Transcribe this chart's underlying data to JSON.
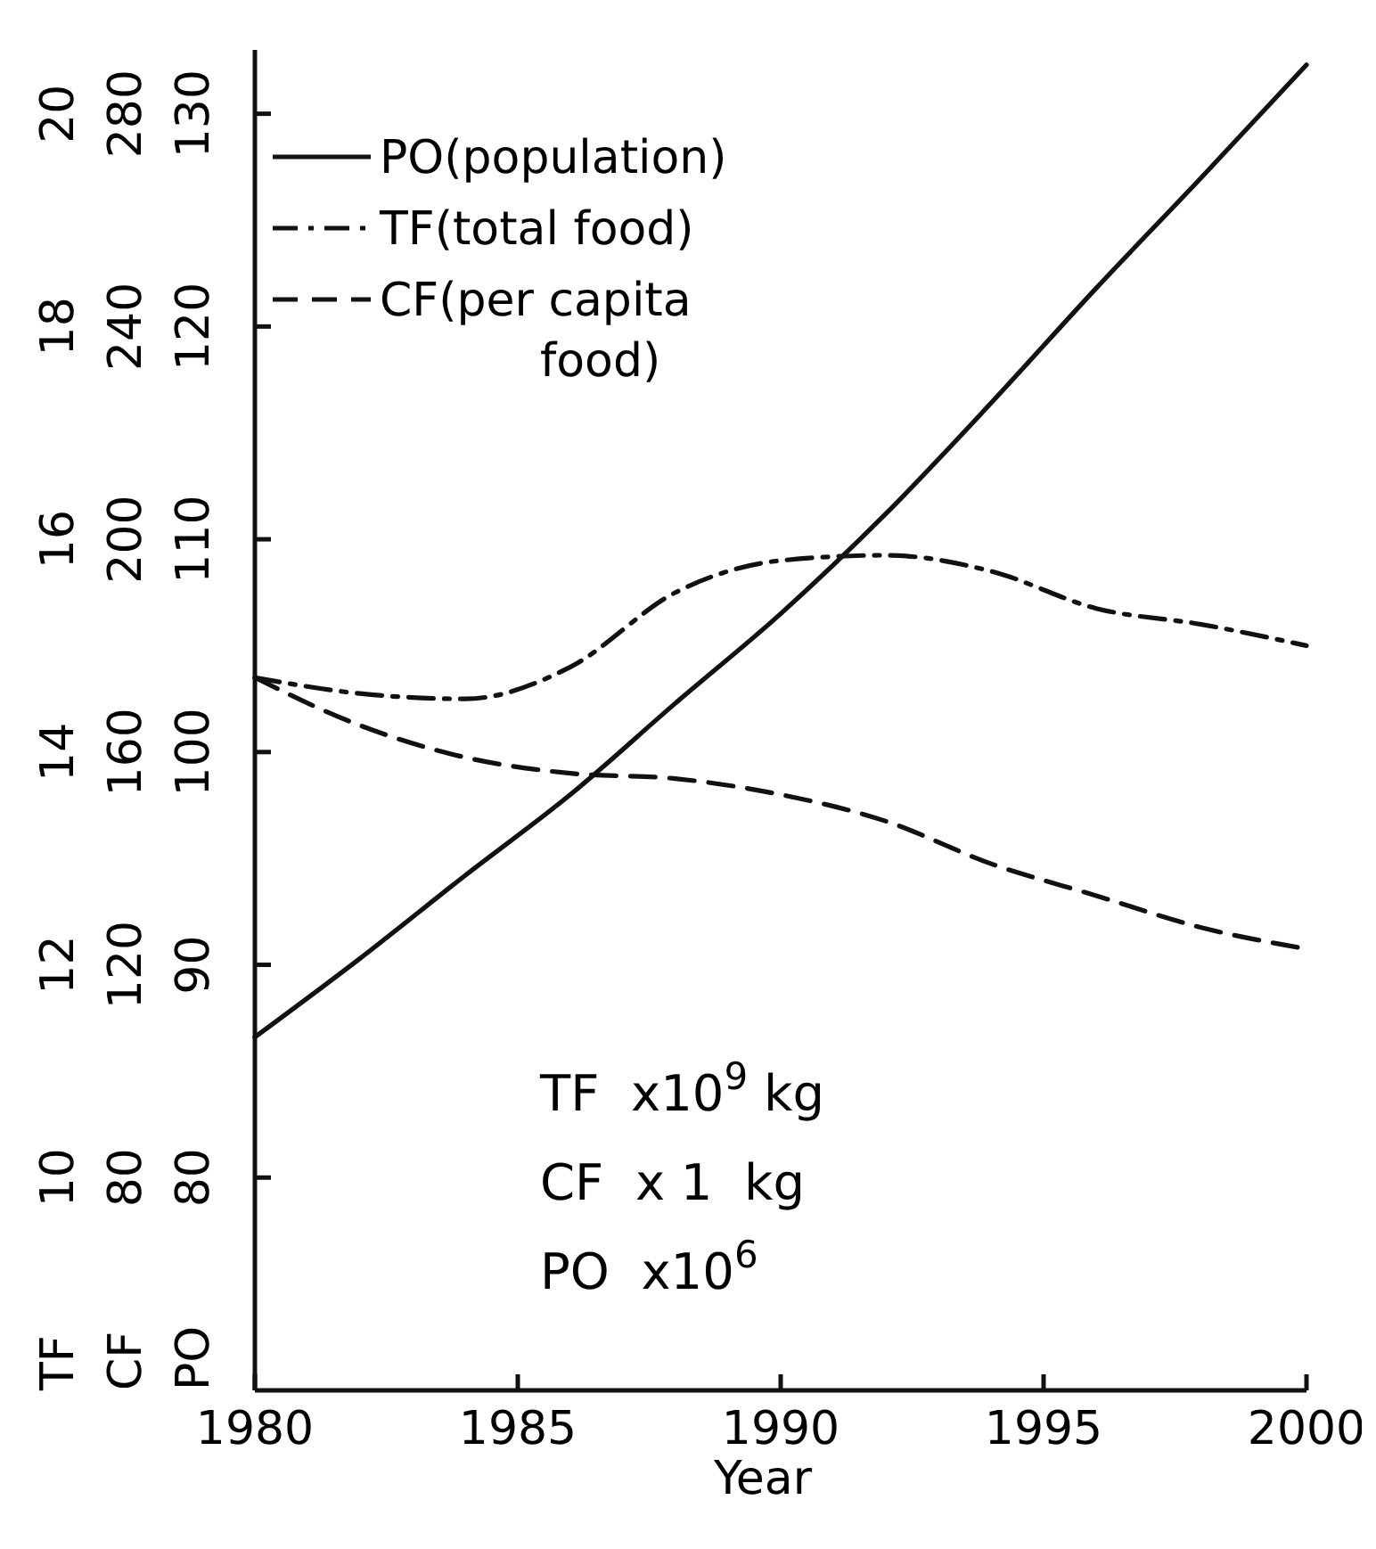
{
  "chart_data": {
    "type": "line",
    "xlabel": "Year",
    "ylabel": "PO",
    "y2label": "CF",
    "y3label": "TF",
    "x": [
      1980,
      1982,
      1984,
      1986,
      1988,
      1990,
      1992,
      1994,
      1996,
      1998,
      2000
    ],
    "xlim": [
      1980,
      2000
    ],
    "xticks": [
      1980,
      1985,
      1990,
      1995,
      2000
    ],
    "ylim": [
      70,
      133
    ],
    "yticks": [
      80,
      90,
      100,
      110,
      120,
      130
    ],
    "y2lim": [
      40,
      292
    ],
    "y2ticks": [
      80,
      120,
      160,
      200,
      240,
      280
    ],
    "y3lim": [
      8,
      20.6
    ],
    "y3ticks": [
      10,
      12,
      14,
      16,
      18,
      20
    ],
    "legend": "top left",
    "grid": false,
    "series": [
      {
        "name": "PO(population)",
        "color": "#111111",
        "line_style": "solid",
        "axis": "y",
        "values": [
          86.6,
          90.3,
          94.2,
          98,
          102.3,
          106.5,
          111.2,
          116.4,
          121.8,
          127,
          132.3
        ]
      },
      {
        "name": "TF(total food)",
        "color": "#111111",
        "line_style": "dashdot",
        "axis": "y3",
        "values": [
          14.7,
          14.55,
          14.5,
          14.8,
          15.5,
          15.8,
          15.85,
          15.7,
          15.35,
          15.2,
          15.0
        ]
      },
      {
        "name": "CF(per capita food)",
        "color": "#111111",
        "line_style": "dashed",
        "axis": "y2",
        "values": [
          174,
          165,
          159,
          156,
          155,
          152,
          147,
          139,
          133,
          127,
          123
        ]
      }
    ],
    "annotations": [
      "TF  x10$^{9}$ kg",
      "CF  x 1  kg",
      "PO  x10$^{6}$"
    ]
  }
}
